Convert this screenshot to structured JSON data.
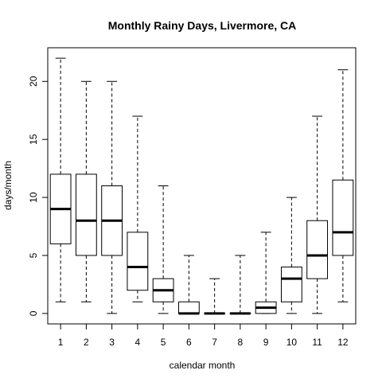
{
  "chart_data": {
    "type": "boxplot",
    "title": "Monthly Rainy Days, Livermore, CA",
    "xlabel": "calendar month",
    "ylabel": "days/month",
    "ylim": [
      -0.9,
      22.9
    ],
    "yticks": [
      0,
      5,
      10,
      15,
      20
    ],
    "grid": false,
    "categories": [
      "1",
      "2",
      "3",
      "4",
      "5",
      "6",
      "7",
      "8",
      "9",
      "10",
      "11",
      "12"
    ],
    "series": [
      {
        "category": "1",
        "min": 1,
        "q1": 6,
        "median": 9,
        "q3": 12,
        "max": 22
      },
      {
        "category": "2",
        "min": 1,
        "q1": 5,
        "median": 8,
        "q3": 12,
        "max": 20
      },
      {
        "category": "3",
        "min": 0,
        "q1": 5,
        "median": 8,
        "q3": 11,
        "max": 20
      },
      {
        "category": "4",
        "min": 1,
        "q1": 2,
        "median": 4,
        "q3": 7,
        "max": 17
      },
      {
        "category": "5",
        "min": 0,
        "q1": 1,
        "median": 2,
        "q3": 3,
        "max": 11
      },
      {
        "category": "6",
        "min": 0,
        "q1": 0,
        "median": 0,
        "q3": 1,
        "max": 5
      },
      {
        "category": "7",
        "min": 0,
        "q1": 0,
        "median": 0,
        "q3": 0,
        "max": 3
      },
      {
        "category": "8",
        "min": 0,
        "q1": 0,
        "median": 0,
        "q3": 0,
        "max": 5
      },
      {
        "category": "9",
        "min": 0,
        "q1": 0,
        "median": 0.5,
        "q3": 1,
        "max": 7
      },
      {
        "category": "10",
        "min": 0,
        "q1": 1,
        "median": 3,
        "q3": 4,
        "max": 10
      },
      {
        "category": "11",
        "min": 0,
        "q1": 3,
        "median": 5,
        "q3": 8,
        "max": 17
      },
      {
        "category": "12",
        "min": 1,
        "q1": 5,
        "median": 7,
        "q3": 11.5,
        "max": 21
      }
    ]
  }
}
